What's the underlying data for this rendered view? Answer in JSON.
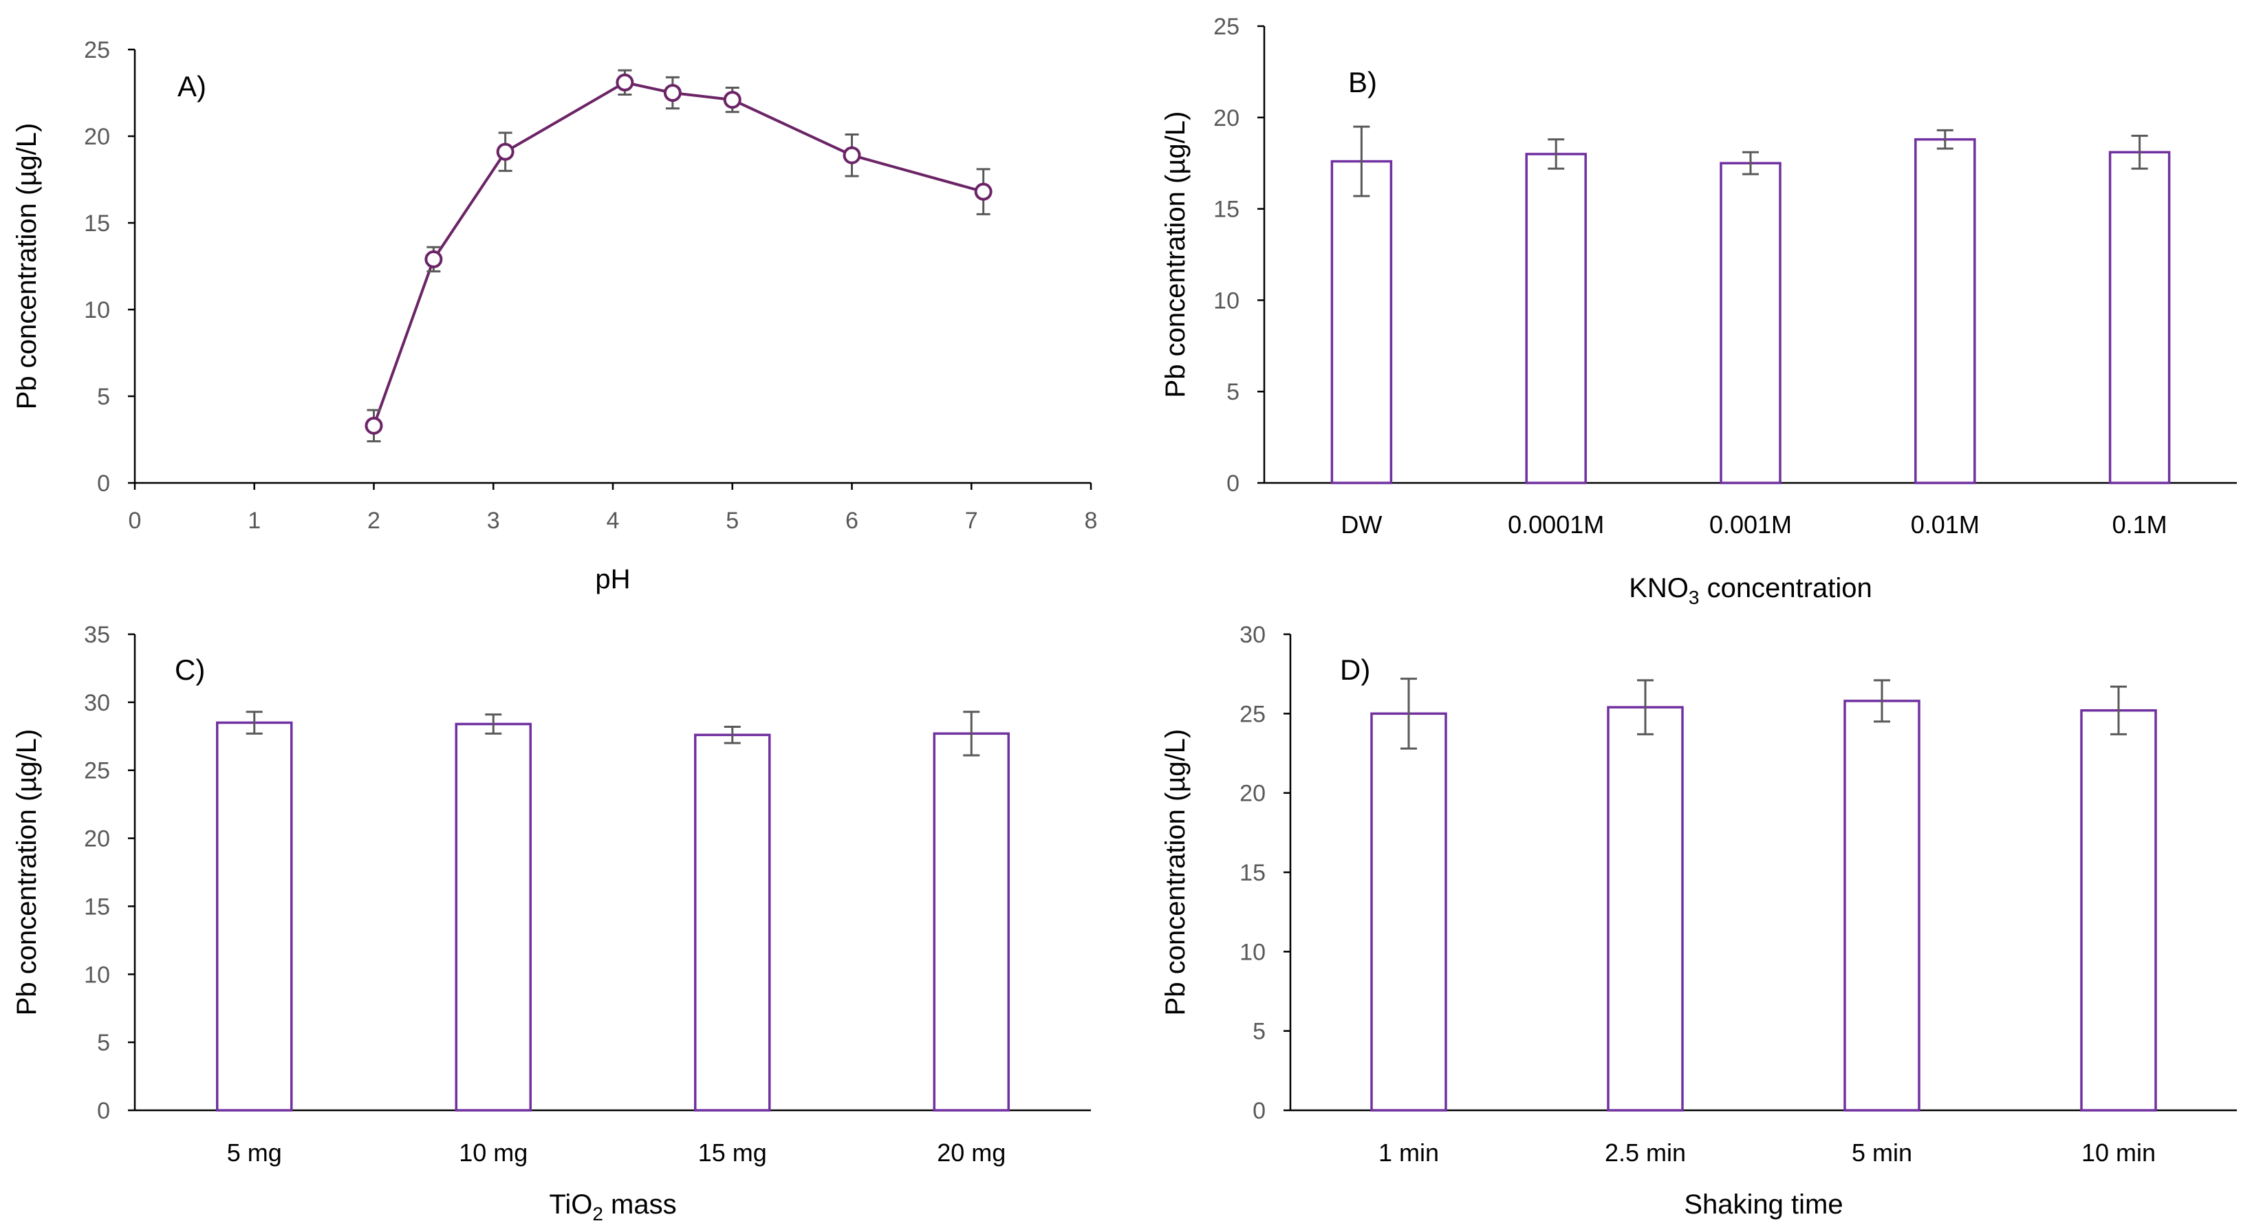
{
  "colors": {
    "line": "#6b2466",
    "bar_outline": "#7030a0",
    "error_bar": "#595959",
    "axis": "#000000"
  },
  "chart_data": [
    {
      "id": "A",
      "type": "line",
      "panel_label": "A)",
      "title": "",
      "xlabel": "pH",
      "ylabel": "Pb  concentration (µg/L)",
      "xlim": [
        0,
        8
      ],
      "ylim": [
        0,
        25
      ],
      "xticks": [
        "0",
        "1",
        "2",
        "3",
        "4",
        "5",
        "6",
        "7",
        "8"
      ],
      "yticks": [
        "0",
        "5",
        "10",
        "15",
        "20",
        "25"
      ],
      "grid": false,
      "series": [
        {
          "name": "Pb concentration",
          "x": [
            2.0,
            2.5,
            3.1,
            4.1,
            4.5,
            5.0,
            6.0,
            7.1
          ],
          "y": [
            3.3,
            12.9,
            19.1,
            23.1,
            22.5,
            22.1,
            18.9,
            16.8
          ],
          "err": [
            0.9,
            0.7,
            1.1,
            0.7,
            0.9,
            0.7,
            1.2,
            1.3
          ]
        }
      ]
    },
    {
      "id": "B",
      "type": "bar",
      "panel_label": "B)",
      "title": "",
      "xlabel": "KNO",
      "xlabel_sub": "3",
      "xlabel_tail": "  concentration",
      "ylabel": "Pb  concentration (µg/L)",
      "ylim": [
        0,
        25
      ],
      "yticks": [
        "0",
        "5",
        "10",
        "15",
        "20",
        "25"
      ],
      "grid": false,
      "categories": [
        "DW",
        "0.0001M",
        "0.001M",
        "0.01M",
        "0.1M"
      ],
      "values": [
        17.6,
        18.0,
        17.5,
        18.8,
        18.1
      ],
      "err": [
        1.9,
        0.8,
        0.6,
        0.5,
        0.9
      ]
    },
    {
      "id": "C",
      "type": "bar",
      "panel_label": "C)",
      "title": "",
      "xlabel": "TiO",
      "xlabel_sub": "2",
      "xlabel_tail": " mass",
      "ylabel": "Pb  concentration (µg/L)",
      "ylim": [
        0,
        35
      ],
      "yticks": [
        "0",
        "5",
        "10",
        "15",
        "20",
        "25",
        "30",
        "35"
      ],
      "grid": false,
      "categories": [
        "5 mg",
        "10 mg",
        "15 mg",
        "20 mg"
      ],
      "values": [
        28.5,
        28.4,
        27.6,
        27.7
      ],
      "err": [
        0.8,
        0.7,
        0.6,
        1.6
      ]
    },
    {
      "id": "D",
      "type": "bar",
      "panel_label": "D)",
      "title": "",
      "xlabel": "Shaking time",
      "xlabel_sub": "",
      "xlabel_tail": "",
      "ylabel": "Pb  concentration (µg/L)",
      "ylim": [
        0,
        30
      ],
      "yticks": [
        "0",
        "5",
        "10",
        "15",
        "20",
        "25",
        "30"
      ],
      "grid": false,
      "categories": [
        "1 min",
        "2.5 min",
        "5 min",
        "10 min"
      ],
      "values": [
        25.0,
        25.4,
        25.8,
        25.2
      ],
      "err": [
        2.2,
        1.7,
        1.3,
        1.5
      ]
    }
  ]
}
